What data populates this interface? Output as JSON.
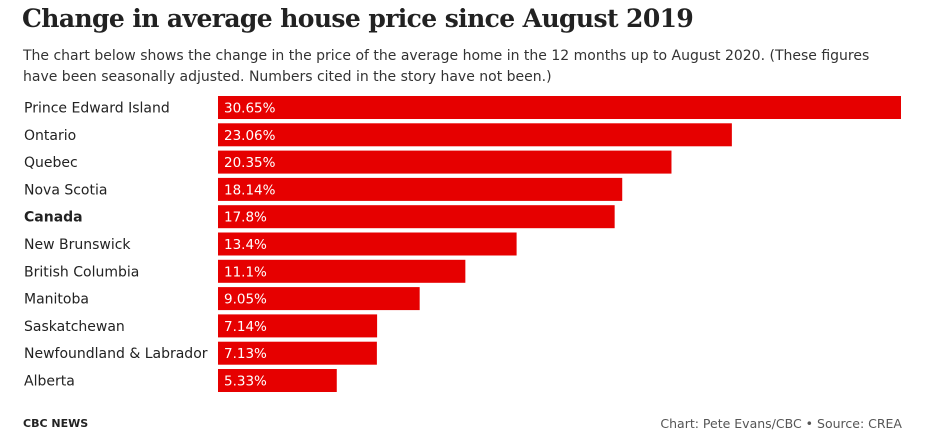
{
  "title": "Change in average house price since August 2019",
  "subtitle": "The chart below shows the change in the price of the average home in the 12 months up to August 2020. (These figures have been seasonally adjusted. Numbers cited in the story have not been.)",
  "footer": {
    "brand": "CBC NEWS",
    "credit": "Chart: Pete Evans/CBC • Source: CREA"
  },
  "colors": {
    "bar": "#e60000",
    "label_text": "#ffffff"
  },
  "chart_data": {
    "type": "bar",
    "orientation": "horizontal",
    "categories": [
      "Prince Edward Island",
      "Ontario",
      "Quebec",
      "Nova Scotia",
      "Canada",
      "New Brunswick",
      "British Columbia",
      "Manitoba",
      "Saskatchewan",
      "Newfoundland & Labrador",
      "Alberta"
    ],
    "values": [
      30.65,
      23.06,
      20.35,
      18.14,
      17.8,
      13.4,
      11.1,
      9.05,
      7.14,
      7.13,
      5.33
    ],
    "value_labels": [
      "30.65%",
      "23.06%",
      "20.35%",
      "18.14%",
      "17.8%",
      "13.4%",
      "11.1%",
      "9.05%",
      "7.14%",
      "7.13%",
      "5.33%"
    ],
    "highlighted_category": "Canada",
    "xlim": [
      0,
      30.65
    ]
  }
}
